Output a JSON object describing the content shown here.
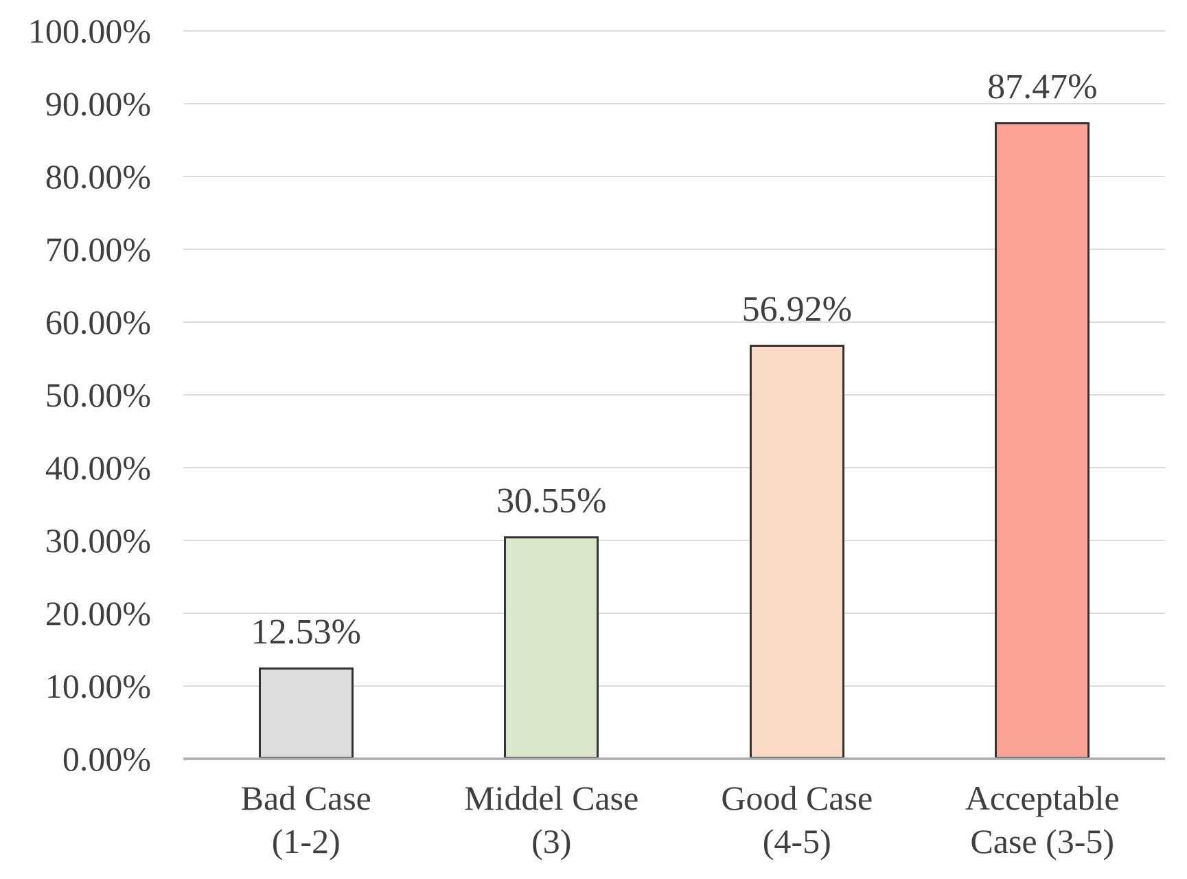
{
  "chart_data": {
    "type": "bar",
    "title": "",
    "xlabel": "",
    "ylabel": "",
    "categories": [
      [
        "Bad Case",
        "(1-2)"
      ],
      [
        "Middel Case",
        "(3)"
      ],
      [
        "Good Case",
        "(4-5)"
      ],
      [
        "Acceptable",
        "Case (3-5)"
      ]
    ],
    "values": [
      12.53,
      30.55,
      56.92,
      87.47
    ],
    "value_labels": [
      "12.53%",
      "30.55%",
      "56.92%",
      "87.47%"
    ],
    "bar_colors": [
      "#dddddd",
      "#d9e6ca",
      "#f9dbc5",
      "#fba396"
    ],
    "bar_border_color": "#333333",
    "y_tick_labels": [
      "100.00%",
      "90.00%",
      "80.00%",
      "70.00%",
      "60.00%",
      "50.00%",
      "40.00%",
      "30.00%",
      "20.00%",
      "10.00%",
      "0.00%"
    ],
    "ylim": [
      0,
      100
    ],
    "grid": true,
    "legend": false,
    "gridline_color": "#dcdcdc",
    "axis_line_color": "#b3b3b3",
    "text_color": "#3f3f3f",
    "background_color": "#ffffff"
  }
}
